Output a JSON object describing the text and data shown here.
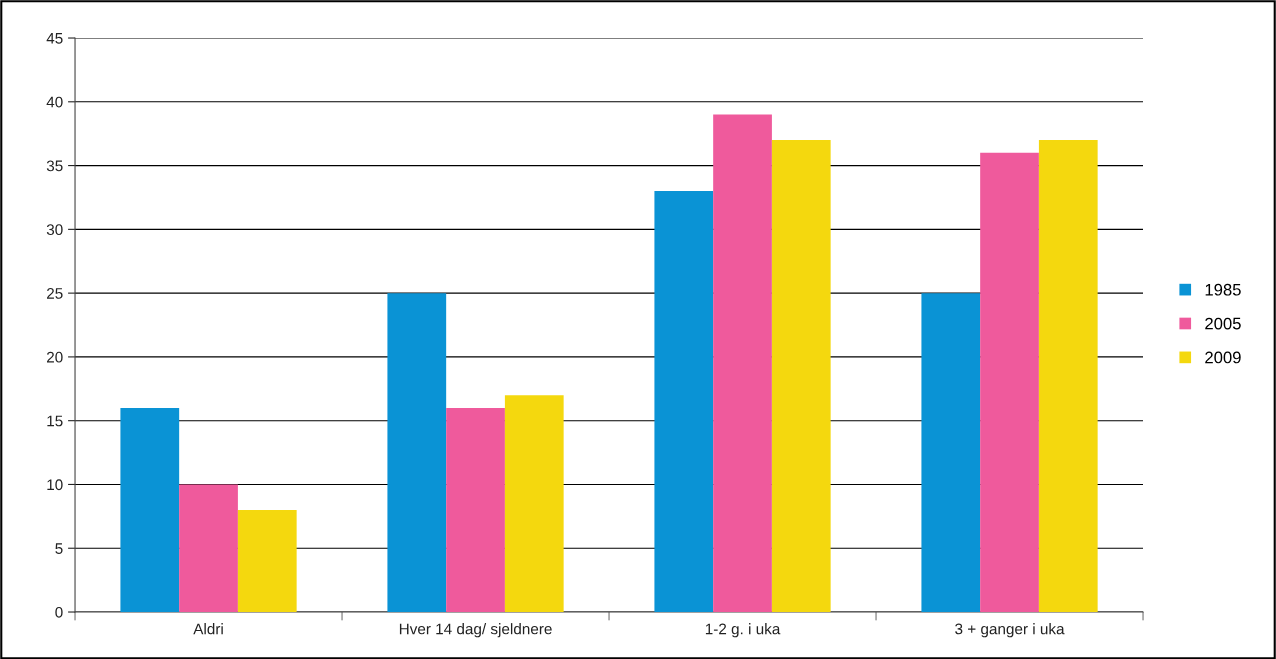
{
  "chart_data": {
    "type": "bar",
    "categories": [
      "Aldri",
      "Hver 14 dag/ sjeldnere",
      "1-2 g. i uka",
      "3 + ganger i uka"
    ],
    "series": [
      {
        "name": "1985",
        "color": "#0a93d5",
        "values": [
          16,
          25,
          33,
          25
        ]
      },
      {
        "name": "2005",
        "color": "#ef5a9c",
        "values": [
          10,
          16,
          39,
          36
        ]
      },
      {
        "name": "2009",
        "color": "#f4d80e",
        "values": [
          8,
          17,
          37,
          37
        ]
      }
    ],
    "ylim": [
      0,
      45
    ],
    "yticks": [
      0,
      5,
      10,
      15,
      20,
      25,
      30,
      35,
      40,
      45
    ],
    "grid": "y",
    "legend": "right"
  }
}
